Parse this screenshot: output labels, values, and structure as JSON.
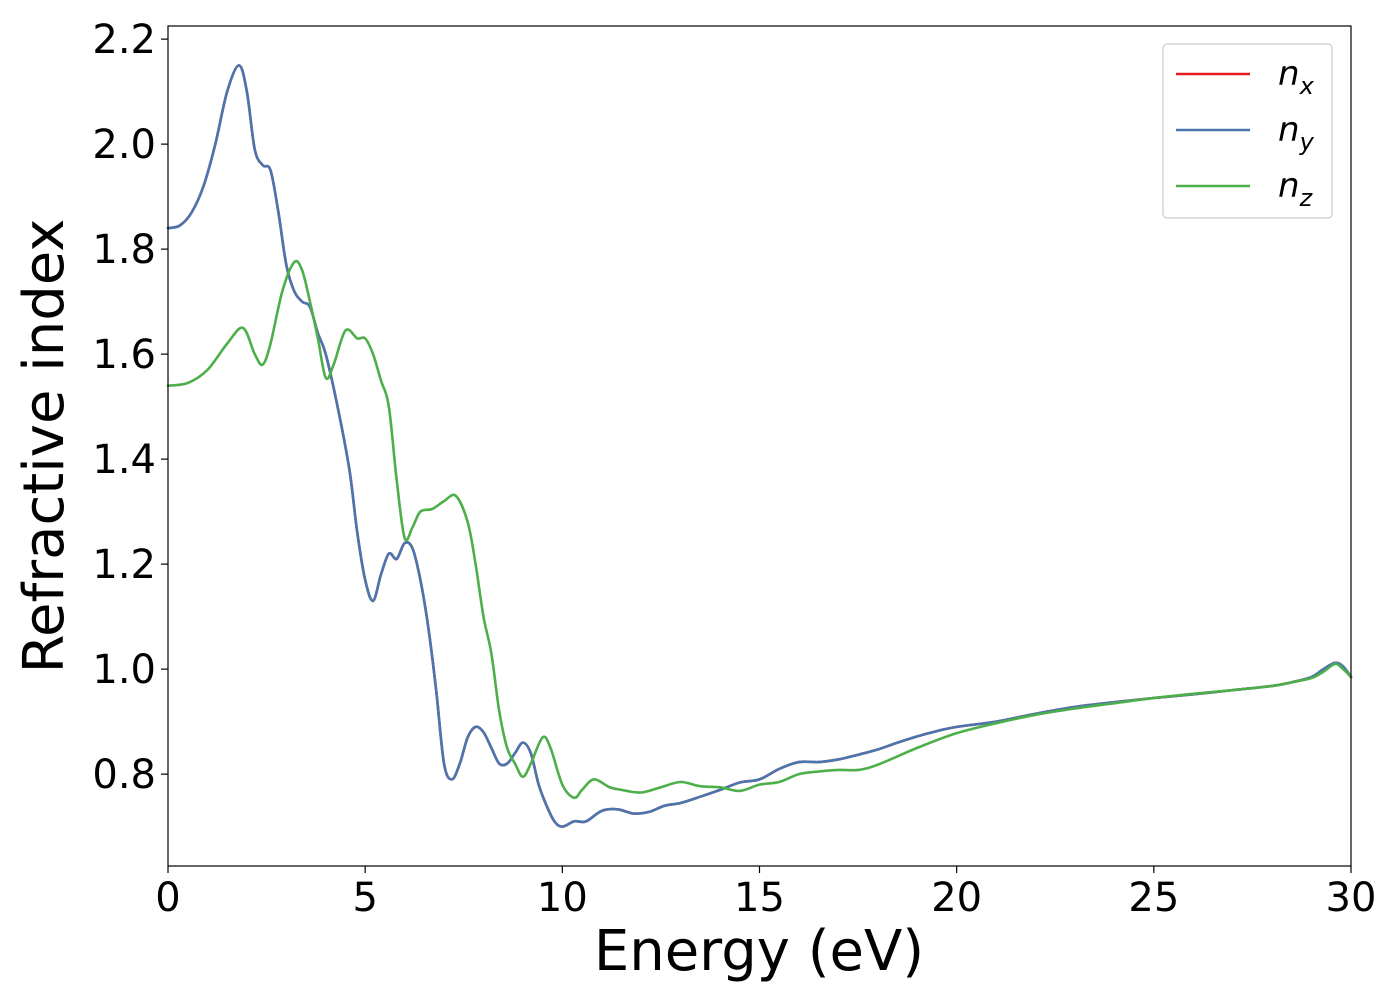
{
  "chart_data": {
    "type": "line",
    "xlabel": "Energy (eV)",
    "ylabel": "Refractive index",
    "xlim": [
      0,
      30
    ],
    "ylim": [
      0.625,
      2.225
    ],
    "xticks": [
      0,
      5,
      10,
      15,
      20,
      25,
      30
    ],
    "xtick_labels": [
      "0",
      "5",
      "10",
      "15",
      "20",
      "25",
      "30"
    ],
    "yticks": [
      0.8,
      1.0,
      1.2,
      1.4,
      1.6,
      1.8,
      2.0,
      2.2
    ],
    "ytick_labels": [
      "0.8",
      "1.0",
      "1.2",
      "1.4",
      "1.6",
      "1.8",
      "2.0",
      "2.2"
    ],
    "grid": false,
    "legend_position": "top-right",
    "series": [
      {
        "name": "n_x",
        "label_base": "n",
        "label_sub": "x",
        "color": "#e41a1c",
        "x": [
          0,
          0.3,
          0.6,
          0.9,
          1.2,
          1.5,
          1.8,
          2.0,
          2.2,
          2.4,
          2.6,
          2.8,
          3.0,
          3.2,
          3.4,
          3.6,
          3.8,
          4.0,
          4.3,
          4.6,
          4.8,
          5.0,
          5.2,
          5.4,
          5.6,
          5.8,
          6.0,
          6.2,
          6.4,
          6.6,
          6.8,
          7.0,
          7.2,
          7.4,
          7.6,
          7.8,
          8.0,
          8.2,
          8.4,
          8.6,
          8.8,
          9.0,
          9.2,
          9.4,
          9.6,
          9.8,
          10.0,
          10.3,
          10.6,
          11.0,
          11.4,
          11.8,
          12.2,
          12.6,
          13.0,
          13.5,
          14.0,
          14.5,
          15.0,
          15.5,
          16.0,
          16.5,
          17.0,
          17.5,
          18.0,
          18.5,
          19.0,
          19.5,
          20.0,
          21.0,
          22.0,
          23.0,
          24.0,
          25.0,
          26.0,
          27.0,
          28.0,
          28.5,
          29.0,
          29.3,
          29.6,
          29.8,
          30.0
        ],
        "y": [
          1.84,
          1.845,
          1.87,
          1.92,
          2.0,
          2.1,
          2.15,
          2.1,
          1.99,
          1.96,
          1.95,
          1.87,
          1.77,
          1.72,
          1.7,
          1.69,
          1.64,
          1.6,
          1.5,
          1.38,
          1.26,
          1.17,
          1.13,
          1.18,
          1.22,
          1.21,
          1.24,
          1.23,
          1.17,
          1.08,
          0.96,
          0.82,
          0.79,
          0.82,
          0.87,
          0.89,
          0.88,
          0.85,
          0.82,
          0.82,
          0.84,
          0.86,
          0.84,
          0.78,
          0.74,
          0.71,
          0.7,
          0.71,
          0.71,
          0.73,
          0.733,
          0.725,
          0.728,
          0.74,
          0.745,
          0.757,
          0.77,
          0.784,
          0.79,
          0.81,
          0.823,
          0.823,
          0.828,
          0.837,
          0.847,
          0.86,
          0.872,
          0.882,
          0.89,
          0.9,
          0.915,
          0.928,
          0.937,
          0.945,
          0.952,
          0.96,
          0.968,
          0.975,
          0.985,
          1.0,
          1.012,
          1.005,
          0.985
        ]
      },
      {
        "name": "n_y",
        "label_base": "n",
        "label_sub": "y",
        "color": "#4a76b0",
        "x": [
          0,
          0.3,
          0.6,
          0.9,
          1.2,
          1.5,
          1.8,
          2.0,
          2.2,
          2.4,
          2.6,
          2.8,
          3.0,
          3.2,
          3.4,
          3.6,
          3.8,
          4.0,
          4.3,
          4.6,
          4.8,
          5.0,
          5.2,
          5.4,
          5.6,
          5.8,
          6.0,
          6.2,
          6.4,
          6.6,
          6.8,
          7.0,
          7.2,
          7.4,
          7.6,
          7.8,
          8.0,
          8.2,
          8.4,
          8.6,
          8.8,
          9.0,
          9.2,
          9.4,
          9.6,
          9.8,
          10.0,
          10.3,
          10.6,
          11.0,
          11.4,
          11.8,
          12.2,
          12.6,
          13.0,
          13.5,
          14.0,
          14.5,
          15.0,
          15.5,
          16.0,
          16.5,
          17.0,
          17.5,
          18.0,
          18.5,
          19.0,
          19.5,
          20.0,
          21.0,
          22.0,
          23.0,
          24.0,
          25.0,
          26.0,
          27.0,
          28.0,
          28.5,
          29.0,
          29.3,
          29.6,
          29.8,
          30.0
        ],
        "y": [
          1.84,
          1.845,
          1.87,
          1.92,
          2.0,
          2.1,
          2.15,
          2.1,
          1.99,
          1.96,
          1.95,
          1.87,
          1.77,
          1.72,
          1.7,
          1.69,
          1.64,
          1.6,
          1.5,
          1.38,
          1.26,
          1.17,
          1.13,
          1.18,
          1.22,
          1.21,
          1.24,
          1.23,
          1.17,
          1.08,
          0.96,
          0.82,
          0.79,
          0.82,
          0.87,
          0.89,
          0.88,
          0.85,
          0.82,
          0.82,
          0.84,
          0.86,
          0.84,
          0.78,
          0.74,
          0.71,
          0.7,
          0.71,
          0.71,
          0.73,
          0.733,
          0.725,
          0.728,
          0.74,
          0.745,
          0.757,
          0.77,
          0.784,
          0.79,
          0.81,
          0.823,
          0.823,
          0.828,
          0.837,
          0.847,
          0.86,
          0.872,
          0.882,
          0.89,
          0.9,
          0.915,
          0.928,
          0.937,
          0.945,
          0.952,
          0.96,
          0.968,
          0.975,
          0.985,
          1.0,
          1.012,
          1.005,
          0.985
        ]
      },
      {
        "name": "n_z",
        "label_base": "n",
        "label_sub": "z",
        "color": "#4daf4a",
        "x": [
          0,
          0.5,
          1.0,
          1.5,
          1.9,
          2.2,
          2.4,
          2.6,
          2.9,
          3.2,
          3.4,
          3.6,
          3.8,
          4.0,
          4.2,
          4.5,
          4.8,
          5.0,
          5.2,
          5.4,
          5.6,
          5.8,
          6.0,
          6.2,
          6.4,
          6.7,
          7.0,
          7.3,
          7.6,
          7.8,
          8.0,
          8.2,
          8.4,
          8.6,
          8.8,
          9.0,
          9.2,
          9.5,
          9.7,
          10.0,
          10.3,
          10.5,
          10.8,
          11.2,
          11.5,
          12.0,
          12.5,
          13.0,
          13.5,
          14.0,
          14.5,
          15.0,
          15.5,
          16.0,
          16.5,
          17.0,
          17.5,
          18.0,
          19.0,
          20.0,
          21.0,
          22.0,
          23.0,
          24.0,
          25.0,
          26.0,
          27.0,
          28.0,
          28.5,
          29.0,
          29.3,
          29.6,
          29.8,
          30.0
        ],
        "y": [
          1.54,
          1.545,
          1.57,
          1.62,
          1.65,
          1.6,
          1.58,
          1.62,
          1.72,
          1.775,
          1.76,
          1.7,
          1.63,
          1.555,
          1.58,
          1.645,
          1.63,
          1.63,
          1.6,
          1.55,
          1.5,
          1.36,
          1.25,
          1.27,
          1.3,
          1.305,
          1.32,
          1.33,
          1.28,
          1.2,
          1.1,
          1.03,
          0.92,
          0.85,
          0.82,
          0.795,
          0.82,
          0.87,
          0.85,
          0.78,
          0.755,
          0.77,
          0.79,
          0.775,
          0.77,
          0.765,
          0.775,
          0.785,
          0.777,
          0.775,
          0.768,
          0.78,
          0.785,
          0.8,
          0.805,
          0.808,
          0.808,
          0.818,
          0.85,
          0.878,
          0.897,
          0.913,
          0.925,
          0.935,
          0.945,
          0.953,
          0.96,
          0.968,
          0.975,
          0.983,
          0.995,
          1.01,
          1.0,
          0.985
        ]
      }
    ]
  }
}
